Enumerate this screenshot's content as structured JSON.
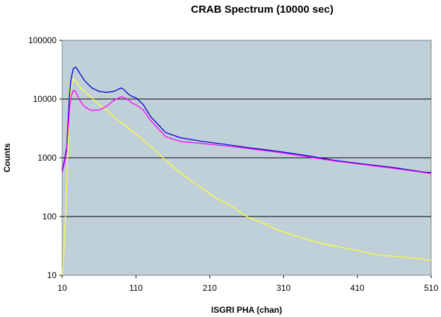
{
  "chart_data": {
    "type": "line",
    "title": "CRAB Spectrum (10000 sec)",
    "xlabel": "ISGRI PHA (chan)",
    "ylabel": "Counts",
    "xlim": [
      10,
      510
    ],
    "ylim": [
      10,
      100000
    ],
    "y_scale": "log",
    "grid": "horizontal",
    "legend": "none",
    "background": "#c0d0d8",
    "x_ticks": [
      "10",
      "110",
      "210",
      "310",
      "410",
      "510"
    ],
    "y_ticks": [
      "10",
      "100",
      "1000",
      "10000",
      "100000"
    ],
    "series": [
      {
        "color": "#0000cc",
        "x": [
          10,
          13,
          16,
          20,
          22,
          25,
          28,
          30,
          32,
          35,
          40,
          45,
          50,
          60,
          70,
          80,
          90,
          95,
          100,
          105,
          110,
          120,
          130,
          150,
          170,
          200,
          230,
          260,
          300,
          340,
          380,
          420,
          460,
          500,
          510
        ],
        "y": [
          600,
          900,
          1500,
          12000,
          22000,
          33000,
          35000,
          33000,
          30000,
          26000,
          21000,
          18000,
          15500,
          13500,
          13000,
          13500,
          15500,
          14000,
          12000,
          11000,
          10500,
          8000,
          5000,
          2700,
          2200,
          1900,
          1700,
          1500,
          1300,
          1100,
          900,
          780,
          680,
          570,
          560
        ]
      },
      {
        "color": "#ff00ff",
        "x": [
          10,
          13,
          16,
          20,
          22,
          25,
          28,
          30,
          32,
          35,
          40,
          45,
          50,
          60,
          70,
          80,
          90,
          95,
          100,
          105,
          110,
          120,
          130,
          150,
          170,
          200,
          230,
          260,
          300,
          340,
          380,
          420,
          460,
          500,
          510
        ],
        "y": [
          550,
          800,
          1300,
          7000,
          11000,
          14000,
          13500,
          12000,
          10500,
          9000,
          7500,
          6800,
          6400,
          6500,
          7500,
          9500,
          11000,
          10500,
          9500,
          8500,
          8000,
          6500,
          4300,
          2300,
          1900,
          1750,
          1600,
          1450,
          1250,
          1050,
          880,
          760,
          660,
          560,
          540
        ]
      },
      {
        "color": "#ffff33",
        "x": [
          10,
          12,
          14,
          16,
          18,
          20,
          22,
          25,
          28,
          30,
          35,
          40,
          50,
          60,
          70,
          80,
          90,
          100,
          120,
          140,
          160,
          180,
          200,
          220,
          240,
          260,
          280,
          300,
          330,
          360,
          400,
          440,
          480,
          510
        ],
        "y": [
          10,
          20,
          80,
          300,
          1500,
          8000,
          15000,
          22000,
          21000,
          19000,
          15500,
          13500,
          10500,
          8000,
          6500,
          5000,
          4000,
          3200,
          2000,
          1200,
          700,
          450,
          300,
          200,
          150,
          100,
          80,
          60,
          45,
          35,
          28,
          22,
          20,
          18
        ]
      }
    ]
  }
}
